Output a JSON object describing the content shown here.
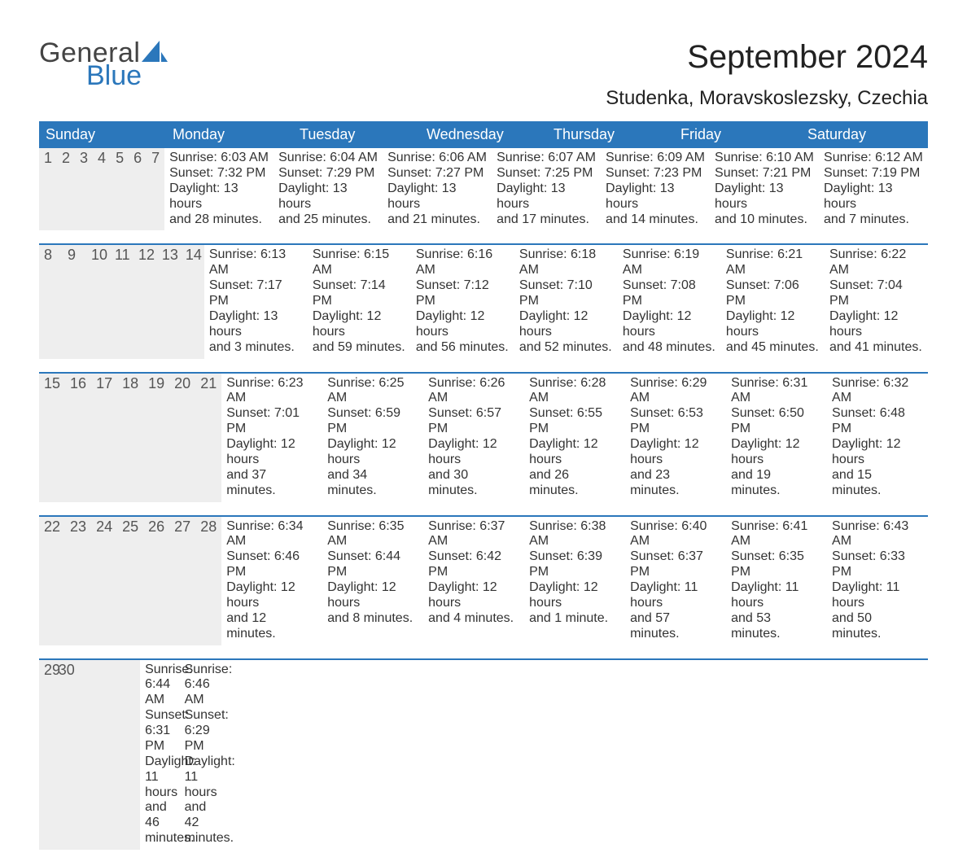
{
  "brand": {
    "logo_top": "General",
    "logo_bottom": "Blue",
    "logo_color_top": "#444444",
    "logo_color_bottom": "#2b77bb",
    "sail_color": "#2b77bb"
  },
  "header": {
    "month_title": "September 2024",
    "location": "Studenka, Moravskoslezsky, Czechia"
  },
  "calendar": {
    "type": "table",
    "header_bg": "#2b77bb",
    "header_fg": "#ffffff",
    "week_separator_color": "#2b77bb",
    "daynum_bg": "#eeeeee",
    "text_color": "#333333",
    "background_color": "#ffffff",
    "weekday_fontsize": 18,
    "daynum_fontsize": 18,
    "body_fontsize": 16,
    "weekdays": [
      "Sunday",
      "Monday",
      "Tuesday",
      "Wednesday",
      "Thursday",
      "Friday",
      "Saturday"
    ],
    "weeks": [
      [
        {
          "day": "1",
          "sunrise": "Sunrise: 6:03 AM",
          "sunset": "Sunset: 7:32 PM",
          "d1": "Daylight: 13 hours",
          "d2": "and 28 minutes."
        },
        {
          "day": "2",
          "sunrise": "Sunrise: 6:04 AM",
          "sunset": "Sunset: 7:29 PM",
          "d1": "Daylight: 13 hours",
          "d2": "and 25 minutes."
        },
        {
          "day": "3",
          "sunrise": "Sunrise: 6:06 AM",
          "sunset": "Sunset: 7:27 PM",
          "d1": "Daylight: 13 hours",
          "d2": "and 21 minutes."
        },
        {
          "day": "4",
          "sunrise": "Sunrise: 6:07 AM",
          "sunset": "Sunset: 7:25 PM",
          "d1": "Daylight: 13 hours",
          "d2": "and 17 minutes."
        },
        {
          "day": "5",
          "sunrise": "Sunrise: 6:09 AM",
          "sunset": "Sunset: 7:23 PM",
          "d1": "Daylight: 13 hours",
          "d2": "and 14 minutes."
        },
        {
          "day": "6",
          "sunrise": "Sunrise: 6:10 AM",
          "sunset": "Sunset: 7:21 PM",
          "d1": "Daylight: 13 hours",
          "d2": "and 10 minutes."
        },
        {
          "day": "7",
          "sunrise": "Sunrise: 6:12 AM",
          "sunset": "Sunset: 7:19 PM",
          "d1": "Daylight: 13 hours",
          "d2": "and 7 minutes."
        }
      ],
      [
        {
          "day": "8",
          "sunrise": "Sunrise: 6:13 AM",
          "sunset": "Sunset: 7:17 PM",
          "d1": "Daylight: 13 hours",
          "d2": "and 3 minutes."
        },
        {
          "day": "9",
          "sunrise": "Sunrise: 6:15 AM",
          "sunset": "Sunset: 7:14 PM",
          "d1": "Daylight: 12 hours",
          "d2": "and 59 minutes."
        },
        {
          "day": "10",
          "sunrise": "Sunrise: 6:16 AM",
          "sunset": "Sunset: 7:12 PM",
          "d1": "Daylight: 12 hours",
          "d2": "and 56 minutes."
        },
        {
          "day": "11",
          "sunrise": "Sunrise: 6:18 AM",
          "sunset": "Sunset: 7:10 PM",
          "d1": "Daylight: 12 hours",
          "d2": "and 52 minutes."
        },
        {
          "day": "12",
          "sunrise": "Sunrise: 6:19 AM",
          "sunset": "Sunset: 7:08 PM",
          "d1": "Daylight: 12 hours",
          "d2": "and 48 minutes."
        },
        {
          "day": "13",
          "sunrise": "Sunrise: 6:21 AM",
          "sunset": "Sunset: 7:06 PM",
          "d1": "Daylight: 12 hours",
          "d2": "and 45 minutes."
        },
        {
          "day": "14",
          "sunrise": "Sunrise: 6:22 AM",
          "sunset": "Sunset: 7:04 PM",
          "d1": "Daylight: 12 hours",
          "d2": "and 41 minutes."
        }
      ],
      [
        {
          "day": "15",
          "sunrise": "Sunrise: 6:23 AM",
          "sunset": "Sunset: 7:01 PM",
          "d1": "Daylight: 12 hours",
          "d2": "and 37 minutes."
        },
        {
          "day": "16",
          "sunrise": "Sunrise: 6:25 AM",
          "sunset": "Sunset: 6:59 PM",
          "d1": "Daylight: 12 hours",
          "d2": "and 34 minutes."
        },
        {
          "day": "17",
          "sunrise": "Sunrise: 6:26 AM",
          "sunset": "Sunset: 6:57 PM",
          "d1": "Daylight: 12 hours",
          "d2": "and 30 minutes."
        },
        {
          "day": "18",
          "sunrise": "Sunrise: 6:28 AM",
          "sunset": "Sunset: 6:55 PM",
          "d1": "Daylight: 12 hours",
          "d2": "and 26 minutes."
        },
        {
          "day": "19",
          "sunrise": "Sunrise: 6:29 AM",
          "sunset": "Sunset: 6:53 PM",
          "d1": "Daylight: 12 hours",
          "d2": "and 23 minutes."
        },
        {
          "day": "20",
          "sunrise": "Sunrise: 6:31 AM",
          "sunset": "Sunset: 6:50 PM",
          "d1": "Daylight: 12 hours",
          "d2": "and 19 minutes."
        },
        {
          "day": "21",
          "sunrise": "Sunrise: 6:32 AM",
          "sunset": "Sunset: 6:48 PM",
          "d1": "Daylight: 12 hours",
          "d2": "and 15 minutes."
        }
      ],
      [
        {
          "day": "22",
          "sunrise": "Sunrise: 6:34 AM",
          "sunset": "Sunset: 6:46 PM",
          "d1": "Daylight: 12 hours",
          "d2": "and 12 minutes."
        },
        {
          "day": "23",
          "sunrise": "Sunrise: 6:35 AM",
          "sunset": "Sunset: 6:44 PM",
          "d1": "Daylight: 12 hours",
          "d2": "and 8 minutes."
        },
        {
          "day": "24",
          "sunrise": "Sunrise: 6:37 AM",
          "sunset": "Sunset: 6:42 PM",
          "d1": "Daylight: 12 hours",
          "d2": "and 4 minutes."
        },
        {
          "day": "25",
          "sunrise": "Sunrise: 6:38 AM",
          "sunset": "Sunset: 6:39 PM",
          "d1": "Daylight: 12 hours",
          "d2": "and 1 minute."
        },
        {
          "day": "26",
          "sunrise": "Sunrise: 6:40 AM",
          "sunset": "Sunset: 6:37 PM",
          "d1": "Daylight: 11 hours",
          "d2": "and 57 minutes."
        },
        {
          "day": "27",
          "sunrise": "Sunrise: 6:41 AM",
          "sunset": "Sunset: 6:35 PM",
          "d1": "Daylight: 11 hours",
          "d2": "and 53 minutes."
        },
        {
          "day": "28",
          "sunrise": "Sunrise: 6:43 AM",
          "sunset": "Sunset: 6:33 PM",
          "d1": "Daylight: 11 hours",
          "d2": "and 50 minutes."
        }
      ],
      [
        {
          "day": "29",
          "sunrise": "Sunrise: 6:44 AM",
          "sunset": "Sunset: 6:31 PM",
          "d1": "Daylight: 11 hours",
          "d2": "and 46 minutes."
        },
        {
          "day": "30",
          "sunrise": "Sunrise: 6:46 AM",
          "sunset": "Sunset: 6:29 PM",
          "d1": "Daylight: 11 hours",
          "d2": "and 42 minutes."
        },
        {
          "empty": true,
          "day": "",
          "sunrise": "",
          "sunset": "",
          "d1": "",
          "d2": ""
        },
        {
          "empty": true,
          "day": "",
          "sunrise": "",
          "sunset": "",
          "d1": "",
          "d2": ""
        },
        {
          "empty": true,
          "day": "",
          "sunrise": "",
          "sunset": "",
          "d1": "",
          "d2": ""
        },
        {
          "empty": true,
          "day": "",
          "sunrise": "",
          "sunset": "",
          "d1": "",
          "d2": ""
        },
        {
          "empty": true,
          "day": "",
          "sunrise": "",
          "sunset": "",
          "d1": "",
          "d2": ""
        }
      ]
    ]
  }
}
